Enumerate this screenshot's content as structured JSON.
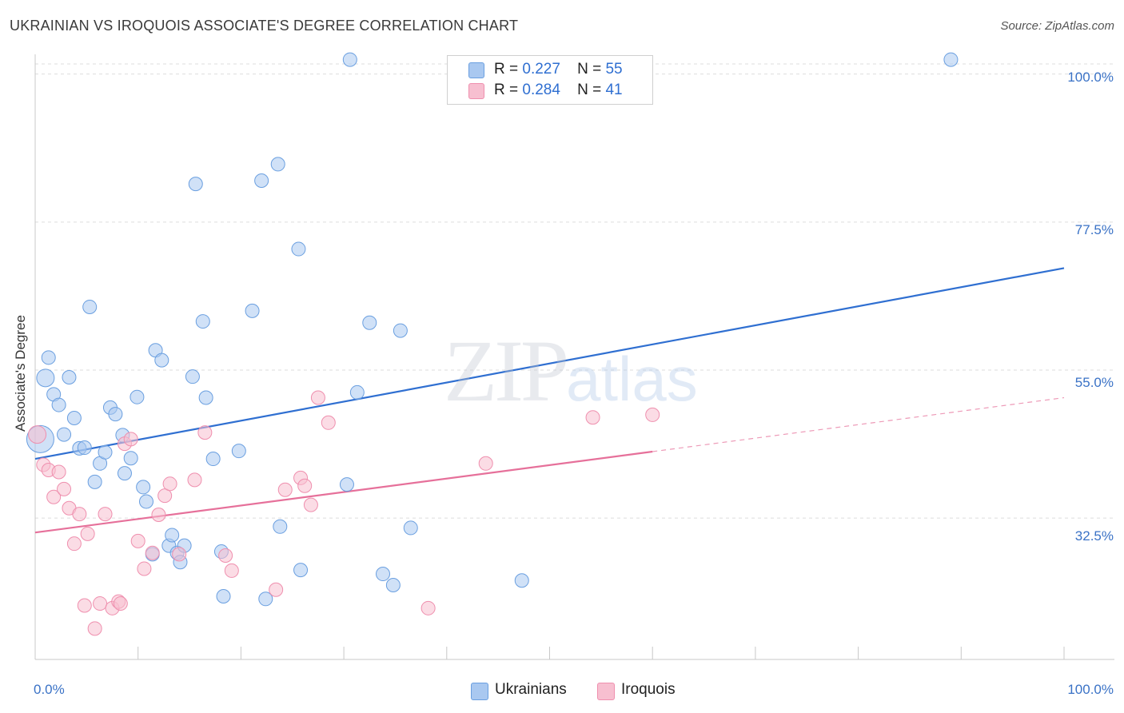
{
  "title": "UKRAINIAN VS IROQUOIS ASSOCIATE'S DEGREE CORRELATION CHART",
  "source": "Source: ZipAtlas.com",
  "watermark": {
    "zip": "ZIP",
    "atlas": "atlas"
  },
  "legend": {
    "rows": [
      {
        "r_label": "R =",
        "r_value": "0.227",
        "n_label": "N =",
        "n_value": "55",
        "color": "#a9c8f0",
        "border": "#6a9fe0"
      },
      {
        "r_label": "R =",
        "r_value": "0.284",
        "n_label": "N =",
        "n_value": "41",
        "color": "#f7bfd0",
        "border": "#ef8fae"
      }
    ]
  },
  "bottom_legend": [
    {
      "label": "Ukrainians",
      "color": "#a9c8f0",
      "border": "#6a9fe0"
    },
    {
      "label": "Iroquois",
      "color": "#f7bfd0",
      "border": "#ef8fae"
    }
  ],
  "chart_data": {
    "type": "scatter",
    "title": "UKRAINIAN VS IROQUOIS ASSOCIATE'S DEGREE CORRELATION CHART",
    "xlabel": "",
    "ylabel": "Associate's Degree",
    "xlim": [
      0,
      100
    ],
    "ylim": [
      11,
      103
    ],
    "x_tick_labels": [
      {
        "value": 0,
        "label": "0.0%"
      },
      {
        "value": 100,
        "label": "100.0%"
      }
    ],
    "y_tick_labels": [
      {
        "value": 32.5,
        "label": "32.5%"
      },
      {
        "value": 55.0,
        "label": "55.0%"
      },
      {
        "value": 77.5,
        "label": "77.5%"
      },
      {
        "value": 100.0,
        "label": "100.0%"
      }
    ],
    "x_minor_ticks": [
      10,
      20,
      30,
      40,
      50,
      60,
      70,
      80,
      90,
      100
    ],
    "y_gridlines": [
      32.5,
      55.0,
      77.5,
      100.0
    ],
    "grid": true,
    "series": [
      {
        "name": "Ukrainians",
        "color": "#a9c8f0",
        "stroke": "#6a9fe0",
        "line_color": "#2f6fd1",
        "trend": {
          "x0": 0,
          "y0": 41.5,
          "x1": 100,
          "y1": 70.5,
          "solid_until": 100
        },
        "points": [
          {
            "x": 0.5,
            "y": 44.5,
            "s": 3
          },
          {
            "x": 1.0,
            "y": 53.8,
            "s": 2
          },
          {
            "x": 1.3,
            "y": 56.9,
            "s": 1
          },
          {
            "x": 1.8,
            "y": 51.3,
            "s": 1
          },
          {
            "x": 2.3,
            "y": 49.7,
            "s": 1
          },
          {
            "x": 2.8,
            "y": 45.2,
            "s": 1
          },
          {
            "x": 3.3,
            "y": 53.9,
            "s": 1
          },
          {
            "x": 3.8,
            "y": 47.7,
            "s": 1
          },
          {
            "x": 4.3,
            "y": 43.1,
            "s": 1
          },
          {
            "x": 4.8,
            "y": 43.2,
            "s": 1
          },
          {
            "x": 5.3,
            "y": 64.6,
            "s": 1
          },
          {
            "x": 5.8,
            "y": 38.0,
            "s": 1
          },
          {
            "x": 6.3,
            "y": 40.8,
            "s": 1
          },
          {
            "x": 6.8,
            "y": 42.5,
            "s": 1
          },
          {
            "x": 7.3,
            "y": 49.3,
            "s": 1
          },
          {
            "x": 7.8,
            "y": 48.3,
            "s": 1
          },
          {
            "x": 8.5,
            "y": 45.1,
            "s": 1
          },
          {
            "x": 8.7,
            "y": 39.3,
            "s": 1
          },
          {
            "x": 9.3,
            "y": 41.6,
            "s": 1
          },
          {
            "x": 9.9,
            "y": 50.9,
            "s": 1
          },
          {
            "x": 10.5,
            "y": 37.2,
            "s": 1
          },
          {
            "x": 10.8,
            "y": 35.0,
            "s": 1
          },
          {
            "x": 11.4,
            "y": 27.0,
            "s": 1
          },
          {
            "x": 11.7,
            "y": 58.0,
            "s": 1
          },
          {
            "x": 12.3,
            "y": 56.5,
            "s": 1
          },
          {
            "x": 13.0,
            "y": 28.3,
            "s": 1
          },
          {
            "x": 13.3,
            "y": 29.9,
            "s": 1
          },
          {
            "x": 13.8,
            "y": 27.2,
            "s": 1
          },
          {
            "x": 14.1,
            "y": 25.8,
            "s": 1
          },
          {
            "x": 14.5,
            "y": 28.3,
            "s": 1
          },
          {
            "x": 15.3,
            "y": 54.0,
            "s": 1
          },
          {
            "x": 15.6,
            "y": 83.3,
            "s": 1
          },
          {
            "x": 16.3,
            "y": 62.4,
            "s": 1
          },
          {
            "x": 16.6,
            "y": 50.8,
            "s": 1
          },
          {
            "x": 17.3,
            "y": 41.5,
            "s": 1
          },
          {
            "x": 18.1,
            "y": 27.4,
            "s": 1
          },
          {
            "x": 18.3,
            "y": 20.6,
            "s": 1
          },
          {
            "x": 19.8,
            "y": 42.7,
            "s": 1
          },
          {
            "x": 21.1,
            "y": 64.0,
            "s": 1
          },
          {
            "x": 22.0,
            "y": 83.8,
            "s": 1
          },
          {
            "x": 22.4,
            "y": 20.2,
            "s": 1
          },
          {
            "x": 23.6,
            "y": 86.3,
            "s": 1
          },
          {
            "x": 23.8,
            "y": 31.2,
            "s": 1
          },
          {
            "x": 25.6,
            "y": 73.4,
            "s": 1
          },
          {
            "x": 25.8,
            "y": 24.6,
            "s": 1
          },
          {
            "x": 30.3,
            "y": 37.6,
            "s": 1
          },
          {
            "x": 30.6,
            "y": 102.2,
            "s": 1
          },
          {
            "x": 31.3,
            "y": 51.6,
            "s": 1
          },
          {
            "x": 32.5,
            "y": 62.2,
            "s": 1
          },
          {
            "x": 33.8,
            "y": 24.0,
            "s": 1
          },
          {
            "x": 34.8,
            "y": 22.3,
            "s": 1
          },
          {
            "x": 35.5,
            "y": 61.0,
            "s": 1
          },
          {
            "x": 36.5,
            "y": 31.0,
            "s": 1
          },
          {
            "x": 47.3,
            "y": 23.0,
            "s": 1
          },
          {
            "x": 89.0,
            "y": 102.2,
            "s": 1
          }
        ]
      },
      {
        "name": "Iroquois",
        "color": "#f7bfd0",
        "stroke": "#ef8fae",
        "line_color": "#e6709a",
        "trend": {
          "x0": 0,
          "y0": 30.3,
          "x1": 100,
          "y1": 50.8,
          "solid_until": 60
        },
        "points": [
          {
            "x": 0.2,
            "y": 45.2,
            "s": 2
          },
          {
            "x": 0.8,
            "y": 40.6,
            "s": 1
          },
          {
            "x": 1.3,
            "y": 39.8,
            "s": 1
          },
          {
            "x": 1.8,
            "y": 35.7,
            "s": 1
          },
          {
            "x": 2.3,
            "y": 39.5,
            "s": 1
          },
          {
            "x": 2.8,
            "y": 36.9,
            "s": 1
          },
          {
            "x": 3.3,
            "y": 34.0,
            "s": 1
          },
          {
            "x": 3.8,
            "y": 28.6,
            "s": 1
          },
          {
            "x": 4.3,
            "y": 33.1,
            "s": 1
          },
          {
            "x": 4.8,
            "y": 19.2,
            "s": 1
          },
          {
            "x": 5.1,
            "y": 30.1,
            "s": 1
          },
          {
            "x": 5.8,
            "y": 15.7,
            "s": 1
          },
          {
            "x": 6.3,
            "y": 19.5,
            "s": 1
          },
          {
            "x": 6.8,
            "y": 33.1,
            "s": 1
          },
          {
            "x": 7.5,
            "y": 18.8,
            "s": 1
          },
          {
            "x": 8.1,
            "y": 19.8,
            "s": 1
          },
          {
            "x": 8.3,
            "y": 19.5,
            "s": 1
          },
          {
            "x": 8.7,
            "y": 43.8,
            "s": 1
          },
          {
            "x": 9.3,
            "y": 44.5,
            "s": 1
          },
          {
            "x": 10.0,
            "y": 29.0,
            "s": 1
          },
          {
            "x": 10.6,
            "y": 24.8,
            "s": 1
          },
          {
            "x": 11.4,
            "y": 27.2,
            "s": 1
          },
          {
            "x": 12.0,
            "y": 33.0,
            "s": 1
          },
          {
            "x": 12.6,
            "y": 35.9,
            "s": 1
          },
          {
            "x": 13.1,
            "y": 37.7,
            "s": 1
          },
          {
            "x": 14.0,
            "y": 27.0,
            "s": 1
          },
          {
            "x": 15.5,
            "y": 38.3,
            "s": 1
          },
          {
            "x": 16.5,
            "y": 45.5,
            "s": 1
          },
          {
            "x": 18.5,
            "y": 26.8,
            "s": 1
          },
          {
            "x": 19.1,
            "y": 24.5,
            "s": 1
          },
          {
            "x": 23.4,
            "y": 21.6,
            "s": 1
          },
          {
            "x": 24.3,
            "y": 36.8,
            "s": 1
          },
          {
            "x": 25.8,
            "y": 38.6,
            "s": 1
          },
          {
            "x": 26.2,
            "y": 37.4,
            "s": 1
          },
          {
            "x": 26.8,
            "y": 34.5,
            "s": 1
          },
          {
            "x": 27.5,
            "y": 50.8,
            "s": 1
          },
          {
            "x": 28.5,
            "y": 47.0,
            "s": 1
          },
          {
            "x": 38.2,
            "y": 18.8,
            "s": 1
          },
          {
            "x": 43.8,
            "y": 40.8,
            "s": 1
          },
          {
            "x": 54.2,
            "y": 47.8,
            "s": 1
          },
          {
            "x": 60.0,
            "y": 48.2,
            "s": 1
          }
        ]
      }
    ]
  }
}
